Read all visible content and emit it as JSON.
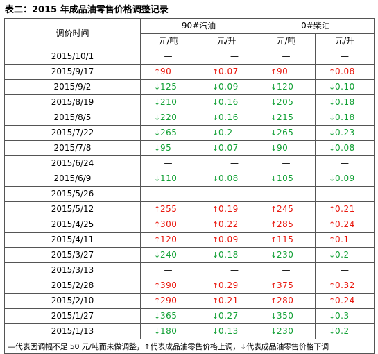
{
  "title": "表二：2015 年成品油零售价格调整记录",
  "table": {
    "date_header": "调价时间",
    "groups": [
      "90#汽油",
      "0#柴油"
    ],
    "units": [
      "元/吨",
      "元/升",
      "元/吨",
      "元/升"
    ],
    "rows": [
      {
        "date": "2015/10/1",
        "cells": [
          {
            "dir": "flat",
            "val": "—"
          },
          {
            "dir": "flat",
            "val": "—"
          },
          {
            "dir": "flat",
            "val": "—"
          },
          {
            "dir": "flat",
            "val": "—"
          }
        ]
      },
      {
        "date": "2015/9/17",
        "cells": [
          {
            "dir": "up",
            "val": "90"
          },
          {
            "dir": "up",
            "val": "0.07"
          },
          {
            "dir": "up",
            "val": "90"
          },
          {
            "dir": "up",
            "val": "0.08"
          }
        ]
      },
      {
        "date": "2015/9/2",
        "cells": [
          {
            "dir": "down",
            "val": "125"
          },
          {
            "dir": "down",
            "val": "0.09"
          },
          {
            "dir": "down",
            "val": "120"
          },
          {
            "dir": "down",
            "val": "0.10"
          }
        ]
      },
      {
        "date": "2015/8/19",
        "cells": [
          {
            "dir": "down",
            "val": "210"
          },
          {
            "dir": "down",
            "val": "0.16"
          },
          {
            "dir": "down",
            "val": "205"
          },
          {
            "dir": "down",
            "val": "0.18"
          }
        ]
      },
      {
        "date": "2015/8/5",
        "cells": [
          {
            "dir": "down",
            "val": "220"
          },
          {
            "dir": "down",
            "val": "0.16"
          },
          {
            "dir": "down",
            "val": "215"
          },
          {
            "dir": "down",
            "val": "0.18"
          }
        ]
      },
      {
        "date": "2015/7/22",
        "cells": [
          {
            "dir": "down",
            "val": "265"
          },
          {
            "dir": "down",
            "val": "0.2"
          },
          {
            "dir": "down",
            "val": "265"
          },
          {
            "dir": "down",
            "val": "0.23"
          }
        ]
      },
      {
        "date": "2015/7/8",
        "cells": [
          {
            "dir": "down",
            "val": "95"
          },
          {
            "dir": "down",
            "val": "0.07"
          },
          {
            "dir": "down",
            "val": "90"
          },
          {
            "dir": "down",
            "val": "0.08"
          }
        ]
      },
      {
        "date": "2015/6/24",
        "cells": [
          {
            "dir": "flat",
            "val": "—"
          },
          {
            "dir": "flat",
            "val": "—"
          },
          {
            "dir": "flat",
            "val": "—"
          },
          {
            "dir": "flat",
            "val": "—"
          }
        ]
      },
      {
        "date": "2015/6/9",
        "cells": [
          {
            "dir": "down",
            "val": "110"
          },
          {
            "dir": "down",
            "val": "0.08"
          },
          {
            "dir": "down",
            "val": "105"
          },
          {
            "dir": "down",
            "val": "0.09"
          }
        ]
      },
      {
        "date": "2015/5/26",
        "cells": [
          {
            "dir": "flat",
            "val": "—"
          },
          {
            "dir": "flat",
            "val": "—"
          },
          {
            "dir": "flat",
            "val": "—"
          },
          {
            "dir": "flat",
            "val": "—"
          }
        ]
      },
      {
        "date": "2015/5/12",
        "cells": [
          {
            "dir": "up",
            "val": "255"
          },
          {
            "dir": "up",
            "val": "0.19"
          },
          {
            "dir": "up",
            "val": "245"
          },
          {
            "dir": "up",
            "val": "0.21"
          }
        ]
      },
      {
        "date": "2015/4/25",
        "cells": [
          {
            "dir": "up",
            "val": "300"
          },
          {
            "dir": "up",
            "val": "0.22"
          },
          {
            "dir": "up",
            "val": "285"
          },
          {
            "dir": "up",
            "val": "0.24"
          }
        ]
      },
      {
        "date": "2015/4/11",
        "cells": [
          {
            "dir": "up",
            "val": "120"
          },
          {
            "dir": "up",
            "val": "0.09"
          },
          {
            "dir": "up",
            "val": "115"
          },
          {
            "dir": "up",
            "val": "0.1"
          }
        ]
      },
      {
        "date": "2015/3/27",
        "cells": [
          {
            "dir": "down",
            "val": "240"
          },
          {
            "dir": "down",
            "val": "0.18"
          },
          {
            "dir": "down",
            "val": "230"
          },
          {
            "dir": "down",
            "val": "0.2"
          }
        ]
      },
      {
        "date": "2015/3/13",
        "cells": [
          {
            "dir": "flat",
            "val": "—"
          },
          {
            "dir": "flat",
            "val": "—"
          },
          {
            "dir": "flat",
            "val": "—"
          },
          {
            "dir": "flat",
            "val": "—"
          }
        ]
      },
      {
        "date": "2015/2/28",
        "cells": [
          {
            "dir": "up",
            "val": "390"
          },
          {
            "dir": "up",
            "val": "0.29"
          },
          {
            "dir": "up",
            "val": "375"
          },
          {
            "dir": "up",
            "val": "0.32"
          }
        ]
      },
      {
        "date": "2015/2/10",
        "cells": [
          {
            "dir": "up",
            "val": "290"
          },
          {
            "dir": "up",
            "val": "0.21"
          },
          {
            "dir": "up",
            "val": "280"
          },
          {
            "dir": "up",
            "val": "0.24"
          }
        ]
      },
      {
        "date": "2015/1/27",
        "cells": [
          {
            "dir": "down",
            "val": "365"
          },
          {
            "dir": "down",
            "val": "0.27"
          },
          {
            "dir": "down",
            "val": "350"
          },
          {
            "dir": "down",
            "val": "0.3"
          }
        ]
      },
      {
        "date": "2015/1/13",
        "cells": [
          {
            "dir": "down",
            "val": "180"
          },
          {
            "dir": "down",
            "val": "0.13"
          },
          {
            "dir": "down",
            "val": "230"
          },
          {
            "dir": "down",
            "val": "0.2"
          }
        ]
      }
    ],
    "note": "—代表因调幅不足 50 元/吨而未做调整，↑代表成品油零售价格上调，↓代表成品油零售价格下调"
  },
  "symbols": {
    "up": "↑",
    "down": "↓"
  },
  "colors": {
    "up": "#e8160c",
    "down": "#12a035",
    "flat": "#000000",
    "border": "#555555"
  }
}
